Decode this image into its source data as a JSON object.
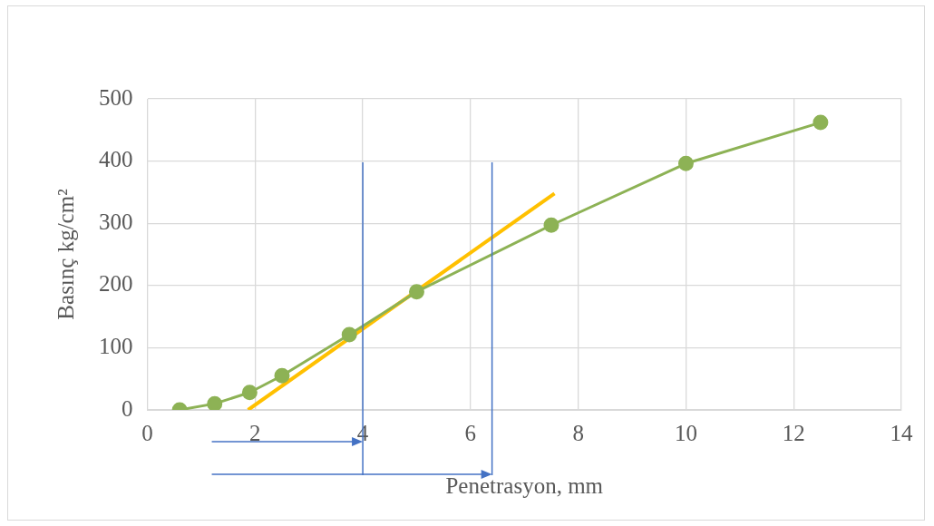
{
  "chart_data": {
    "type": "line",
    "xlabel": "Penetrasyon, mm",
    "ylabel": "Basınç kg/cm²",
    "xlim": [
      0,
      14
    ],
    "xticks": [
      0,
      2,
      4,
      6,
      8,
      10,
      12,
      14
    ],
    "ylim": [
      0,
      500
    ],
    "yticks": [
      0,
      100,
      200,
      300,
      400,
      500
    ],
    "grid": true,
    "legend": false,
    "marker": "circle",
    "line_style": "solid",
    "series": [
      {
        "color": "#8db255",
        "x": [
          0.6,
          1.25,
          1.9,
          2.5,
          3.75,
          5,
          7.5,
          10,
          12.5
        ],
        "values": [
          0,
          10,
          28,
          55,
          121,
          190,
          297,
          396,
          462
        ]
      },
      {
        "color": "#ffc000",
        "marker": "none",
        "x": [
          1.87,
          7.56
        ],
        "values": [
          0,
          348
        ]
      }
    ],
    "ref_lines": [
      {
        "axis": "x",
        "value": 4,
        "color": "#4472c4"
      },
      {
        "axis": "x",
        "value": 6.4,
        "color": "#4472c4"
      }
    ]
  }
}
